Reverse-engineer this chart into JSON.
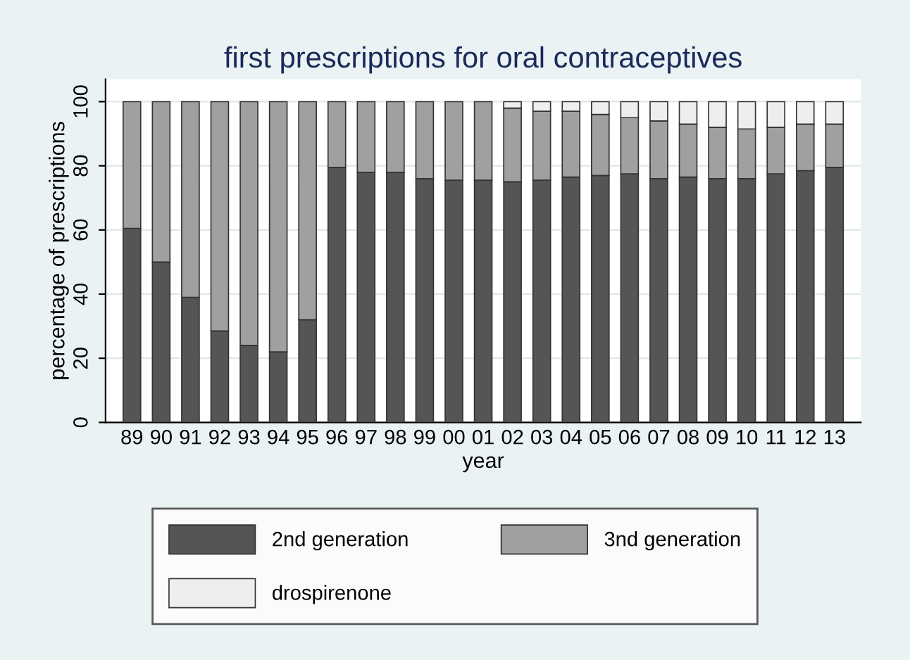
{
  "chart_data": {
    "type": "bar",
    "title": "first prescriptions for oral contraceptives",
    "xlabel": "year",
    "ylabel": "percentage of prescriptions",
    "categories": [
      "89",
      "90",
      "91",
      "92",
      "93",
      "94",
      "95",
      "96",
      "97",
      "98",
      "99",
      "00",
      "01",
      "02",
      "03",
      "04",
      "05",
      "06",
      "07",
      "08",
      "09",
      "10",
      "11",
      "12",
      "13"
    ],
    "stacked": true,
    "series": [
      {
        "name": "2nd generation",
        "color": "#555555",
        "values": [
          60.5,
          50,
          39,
          28.5,
          24,
          22,
          32,
          79.5,
          78,
          78,
          76,
          75.5,
          75.5,
          75,
          75.5,
          76.5,
          77,
          77.5,
          76,
          76.5,
          76,
          76,
          77.5,
          78.5,
          79.5
        ]
      },
      {
        "name": "3nd generation",
        "color": "#a0a0a0",
        "values": [
          39.5,
          50,
          61,
          71.5,
          76,
          78,
          68,
          20.5,
          22,
          22,
          24,
          24.5,
          24.5,
          23,
          21.5,
          20.5,
          19,
          17.5,
          18,
          16.5,
          16,
          15.5,
          14.5,
          14.5,
          13.5
        ]
      },
      {
        "name": "drospirenone",
        "color": "#eeeeee",
        "values": [
          null,
          null,
          null,
          null,
          null,
          null,
          null,
          null,
          null,
          null,
          null,
          null,
          null,
          2,
          3,
          3,
          4,
          5,
          6,
          7,
          8,
          8.5,
          8,
          7,
          7
        ]
      }
    ],
    "ylim": [
      0,
      107
    ],
    "yticks": [
      0,
      20,
      40,
      60,
      80,
      100
    ],
    "grid": "y",
    "legend": "bottom"
  }
}
